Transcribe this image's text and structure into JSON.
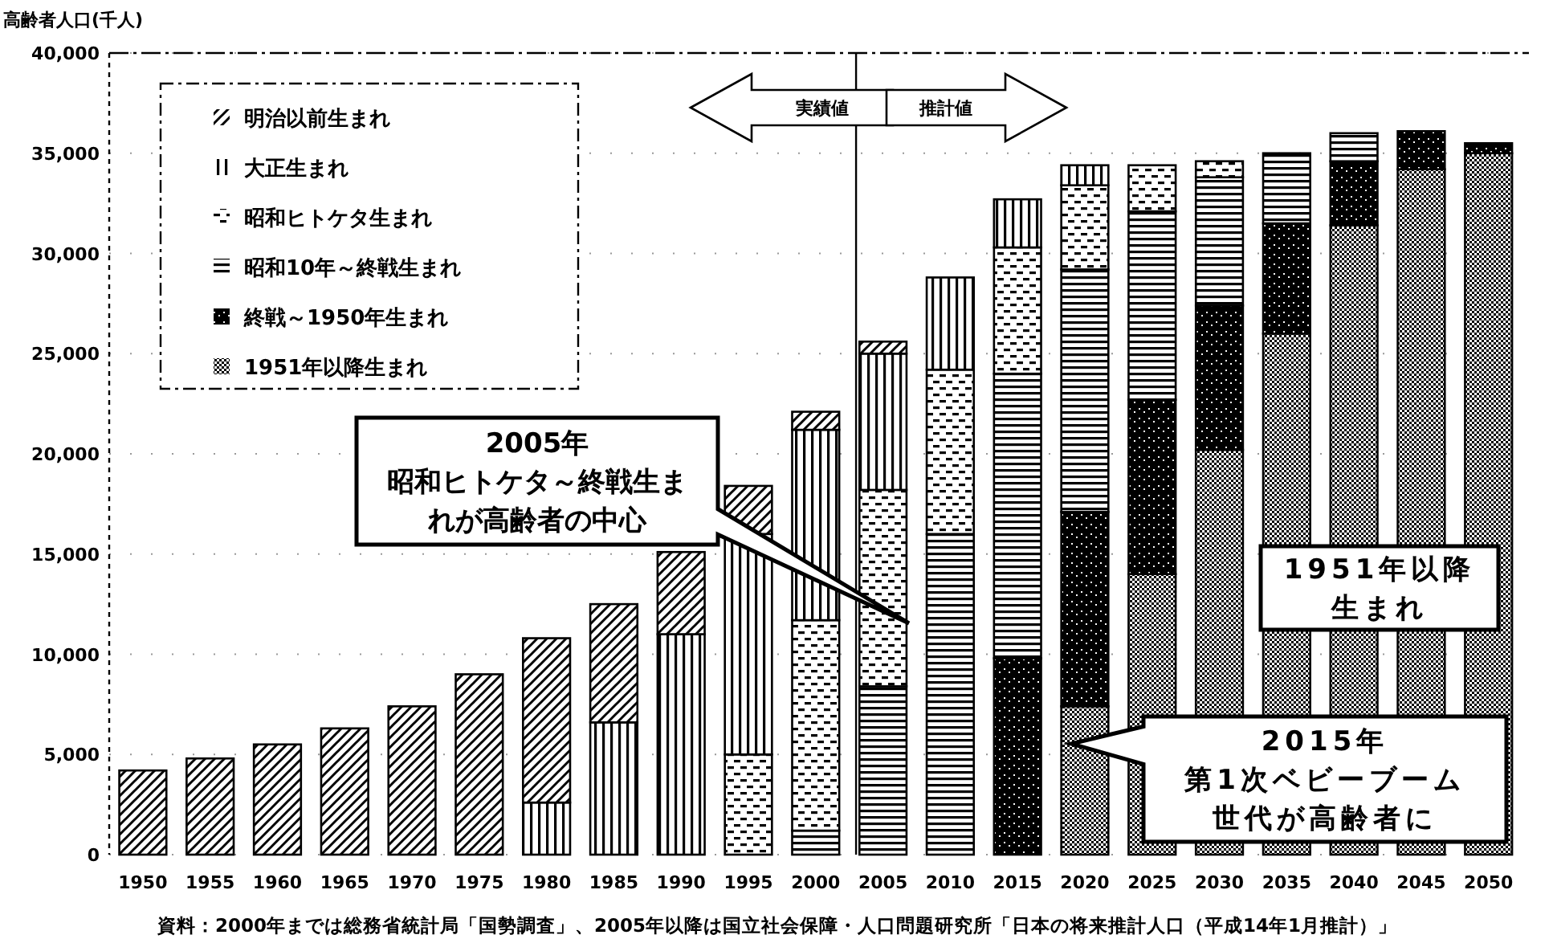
{
  "chart_data": {
    "type": "bar",
    "stacked": true,
    "ylabel": "高齢者人口(千人)",
    "x": [
      1950,
      1955,
      1960,
      1965,
      1970,
      1975,
      1980,
      1985,
      1990,
      1995,
      2000,
      2005,
      2010,
      2015,
      2020,
      2025,
      2030,
      2035,
      2040,
      2045,
      2050
    ],
    "xlim": [
      1947.5,
      2053
    ],
    "xticks": [
      1950,
      1955,
      1960,
      1965,
      1970,
      1975,
      1980,
      1985,
      1990,
      1995,
      2000,
      2005,
      2010,
      2015,
      2020,
      2025,
      2030,
      2035,
      2040,
      2045,
      2050
    ],
    "ylim": [
      0,
      40000
    ],
    "yticks": [
      0,
      {
        "value": 5000,
        "label": "5,000"
      },
      {
        "value": 10000,
        "label": "10,000"
      },
      {
        "value": 15000,
        "label": "15,000"
      },
      {
        "value": 20000,
        "label": "20,000"
      },
      {
        "value": 25000,
        "label": "25,000"
      },
      {
        "value": 30000,
        "label": "30,000"
      },
      {
        "value": 35000,
        "label": "35,000"
      },
      {
        "value": 40000,
        "label": "40,000"
      }
    ],
    "grid": "y",
    "legend": "top left",
    "series": [
      {
        "name": "1951年以降生まれ",
        "color": "#000000",
        "values": [
          null,
          null,
          null,
          null,
          null,
          null,
          null,
          null,
          null,
          null,
          null,
          null,
          null,
          null,
          7400,
          14000,
          20200,
          26000,
          31400,
          34200,
          35000
        ]
      },
      {
        "name": "終戦～1950年生まれ",
        "color": "#000000",
        "values": [
          null,
          null,
          null,
          null,
          null,
          null,
          null,
          null,
          null,
          null,
          null,
          null,
          null,
          9800,
          9700,
          8700,
          7200,
          5500,
          3200,
          1900,
          500
        ]
      },
      {
        "name": "昭和10年～終戦生まれ",
        "color": "#000000",
        "values": [
          null,
          null,
          null,
          null,
          null,
          null,
          null,
          null,
          null,
          null,
          1200,
          8400,
          16000,
          14200,
          12100,
          9400,
          6400,
          3500,
          1400,
          null,
          null
        ]
      },
      {
        "name": "昭和ヒトケタ生まれ",
        "color": "#000000",
        "values": [
          null,
          null,
          null,
          null,
          null,
          null,
          null,
          null,
          null,
          5000,
          10500,
          9800,
          8200,
          6300,
          4200,
          2300,
          800,
          null,
          null,
          null,
          null
        ]
      },
      {
        "name": "大正生まれ",
        "color": "#000000",
        "values": [
          null,
          null,
          null,
          null,
          null,
          null,
          2600,
          6600,
          11000,
          11000,
          9500,
          6800,
          4600,
          2400,
          1000,
          null,
          null,
          null,
          null,
          null,
          null
        ]
      },
      {
        "name": "明治以前生まれ",
        "color": "#000000",
        "values": [
          4200,
          4800,
          5500,
          6300,
          7400,
          9000,
          8200,
          5900,
          4100,
          2400,
          900,
          600,
          null,
          null,
          null,
          null,
          null,
          null,
          null,
          null,
          null
        ]
      }
    ],
    "ref_lines": [
      {
        "axis": "x",
        "value": 2003
      }
    ],
    "annotations": [
      "実績値",
      "推計値",
      "2005年昭和ヒトケタ～終戦生まれが高齢者の中心",
      "1951年以降生まれ",
      "2015年第1次ベビーブーム世代が高齢者に",
      "資料：2000年までは総務省統計局「国勢調査」、2005年以降は国立社会保障・人口問題研究所「日本の将来推計人口（平成14年1月推計）」"
    ]
  }
}
